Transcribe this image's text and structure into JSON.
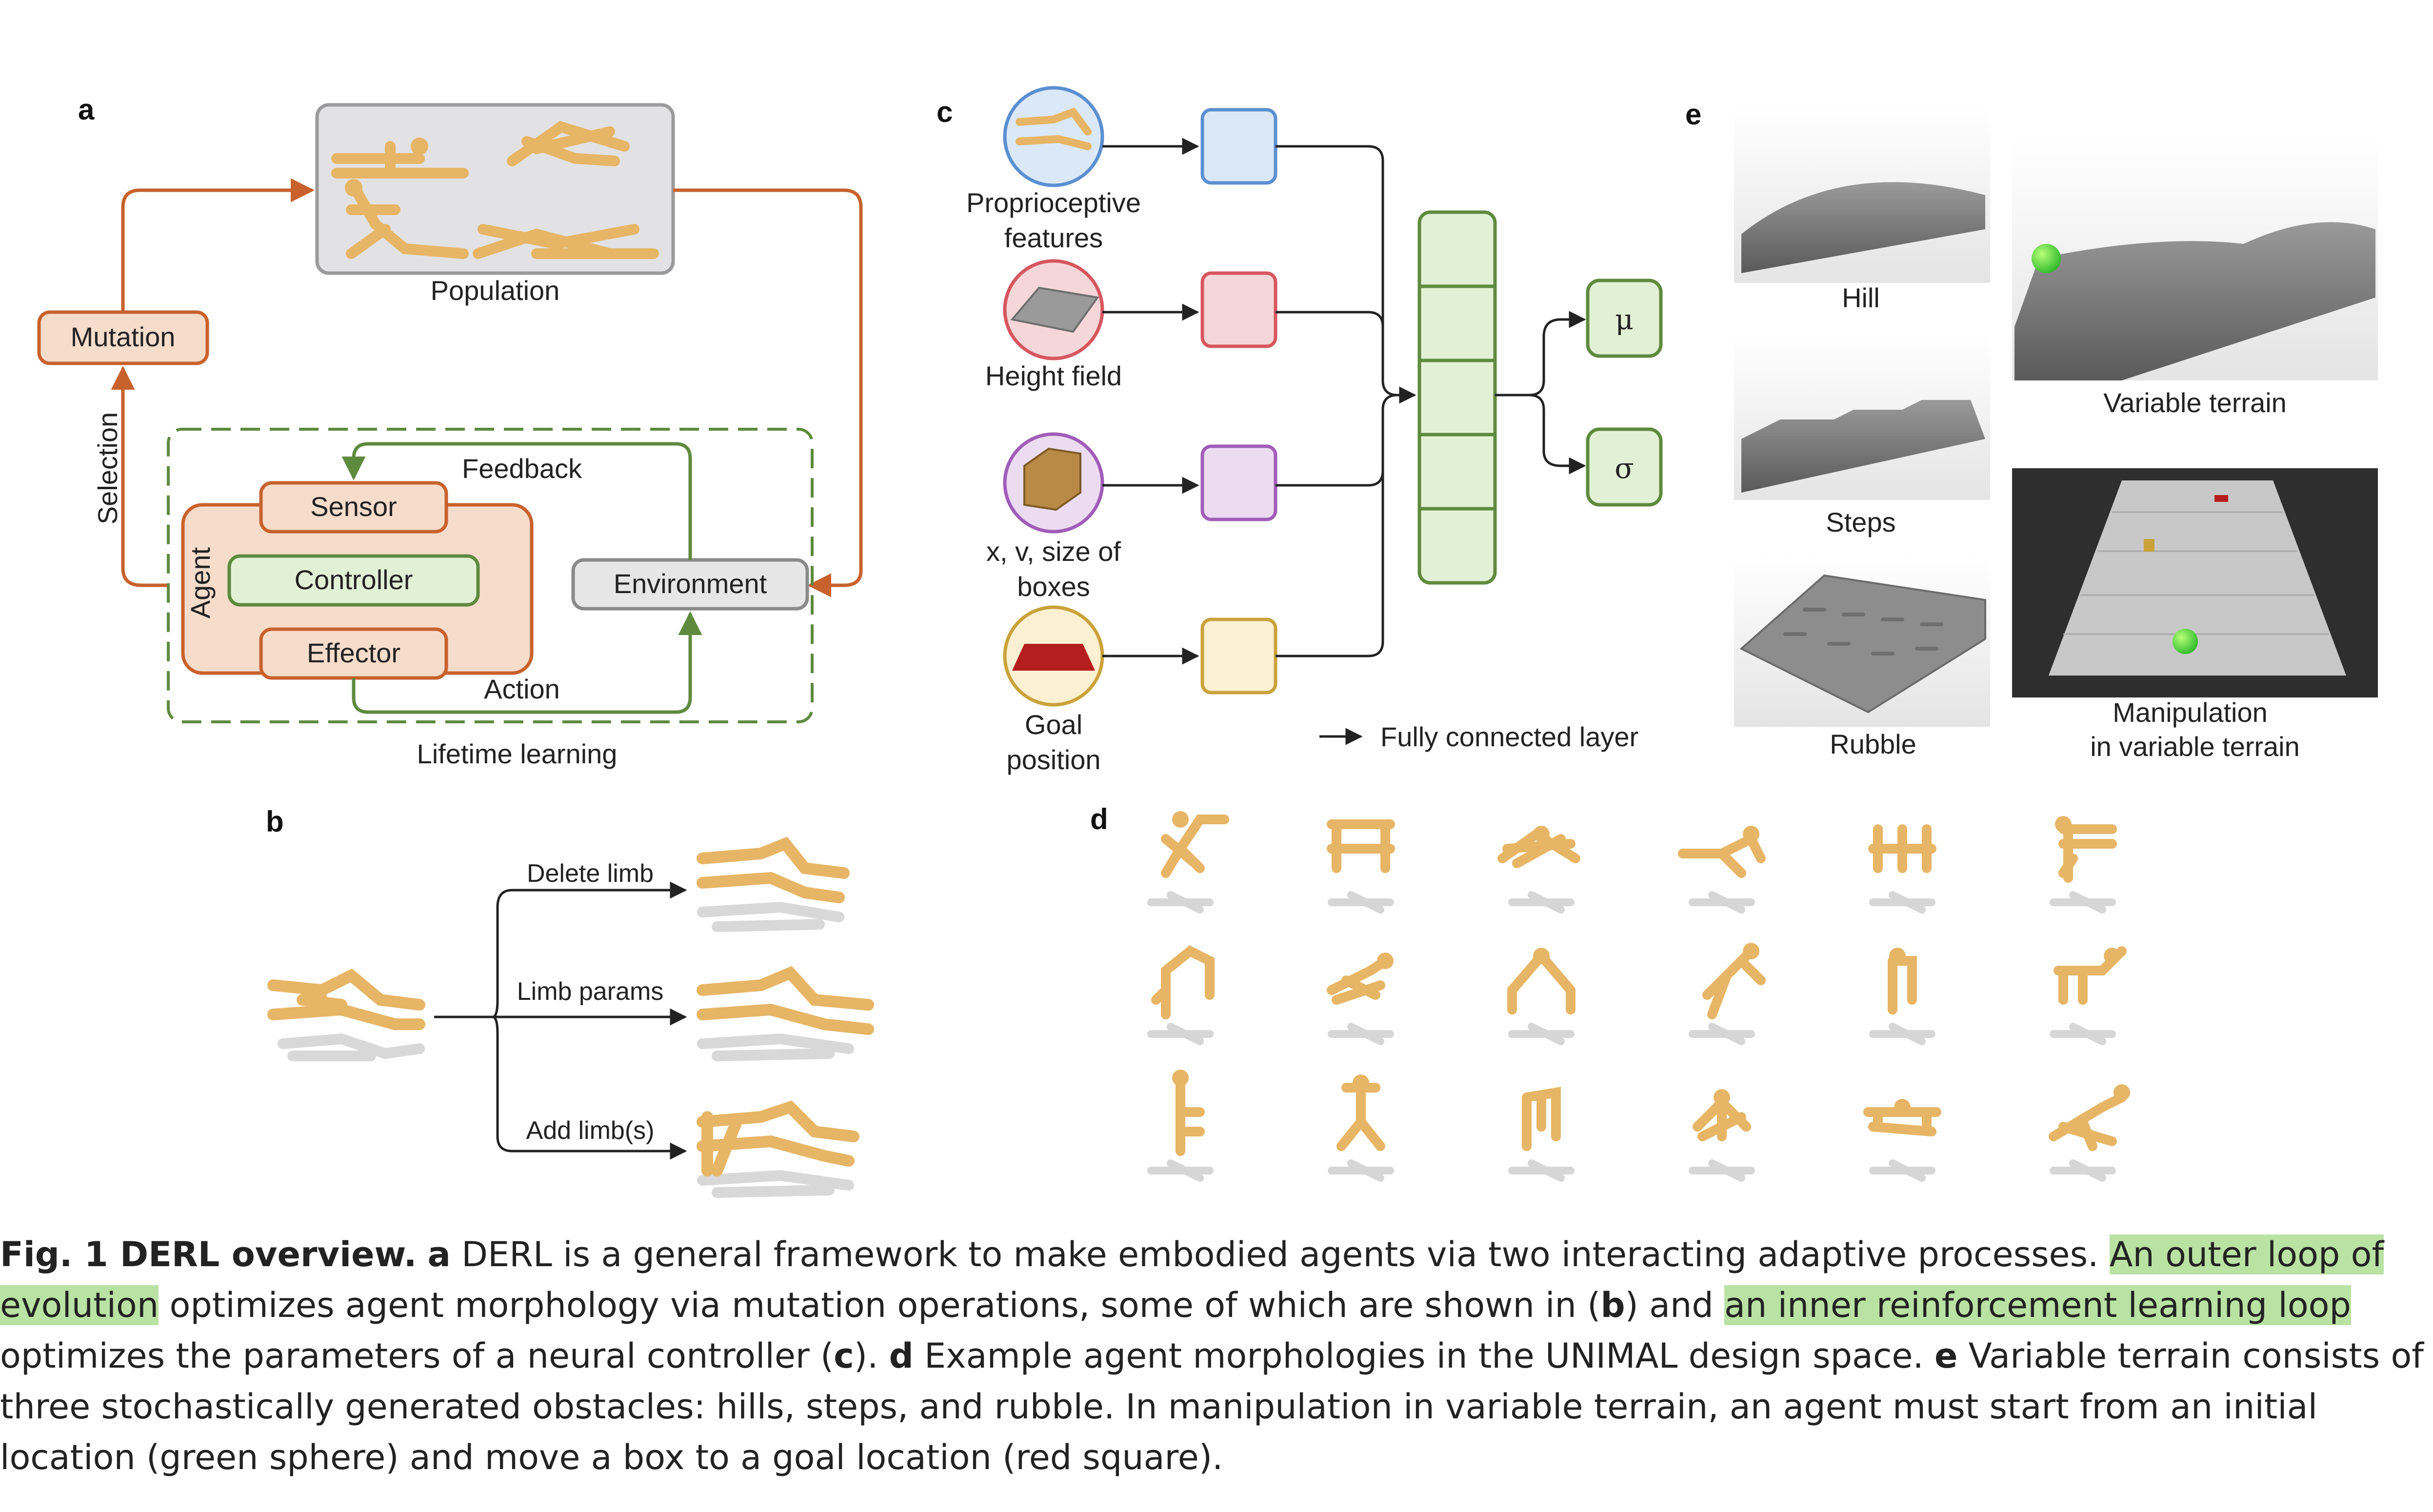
{
  "panels": {
    "a": "a",
    "b": "b",
    "c": "c",
    "d": "d",
    "e": "e"
  },
  "panel_a": {
    "population": "Population",
    "mutation": "Mutation",
    "selection": "Selection",
    "feedback": "Feedback",
    "sensor": "Sensor",
    "agent": "Agent",
    "controller": "Controller",
    "environment": "Environment",
    "effector": "Effector",
    "action": "Action",
    "lifetime_learning": "Lifetime learning"
  },
  "panel_b": {
    "delete_limb": "Delete limb",
    "limb_params": "Limb params",
    "add_limbs": "Add limb(s)"
  },
  "panel_c": {
    "proprio_1": "Proprioceptive",
    "proprio_2": "features",
    "height_field": "Height field",
    "boxes_1": "x, v, size of",
    "boxes_2": "boxes",
    "goal_1": "Goal",
    "goal_2": "position",
    "mu": "μ",
    "sigma": "σ",
    "fc_legend": "Fully connected layer"
  },
  "panel_e": {
    "hill": "Hill",
    "steps": "Steps",
    "rubble": "Rubble",
    "variable_terrain": "Variable terrain",
    "manip_1": "Manipulation",
    "manip_2": "in variable terrain"
  },
  "caption": {
    "fig": "Fig. 1 DERL overview.",
    "a": "a",
    "t1": " DERL is a general framework to make embodied agents via two interacting adaptive processes. ",
    "h1": "An outer loop of evolution",
    "t2": " optimizes agent morphology via mutation operations, some of which are shown in (",
    "b": "b",
    "t3": ") and ",
    "h2": "an inner reinforcement learning loop",
    "t4": " optimizes the parameters of a neural controller (",
    "c": "c",
    "t5": "). ",
    "d": "d",
    "t6": " Example agent morphologies in the UNIMAL design space. ",
    "e": "e",
    "t7": " Variable terrain consists of three stochastically generated obstacles: hills, steps, and rubble. In manipulation in variable terrain, an agent must start from an initial location (green sphere) and move a box to a goal location (red square)."
  },
  "colors": {
    "orange": "#c8612c",
    "orange_fill": "#f6dccb",
    "green": "#5e8a3e",
    "green_fill": "#e2f1d6",
    "gray_fill": "#e6e6e6",
    "limb": "#e7b566",
    "blue": "#5b8fd0",
    "red": "#d6565f",
    "purple": "#a05db8",
    "gold": "#c9a23a",
    "highlight": "#b9e2a3"
  }
}
